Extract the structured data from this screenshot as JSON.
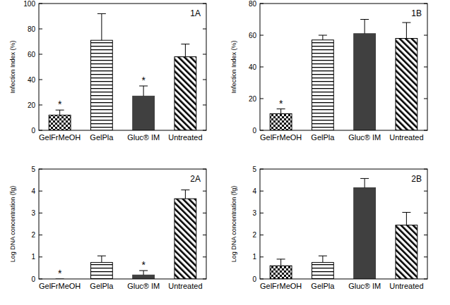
{
  "chart_data": [
    {
      "type": "bar",
      "title": "1A",
      "y_label": "Infection Index (%)",
      "categories": [
        "GelFrMeOH",
        "GelPla",
        "Gluc® IM",
        "Untreated"
      ],
      "values": [
        12,
        71,
        27,
        58
      ],
      "errors": [
        4,
        21,
        8,
        10
      ],
      "annotations": [
        "*",
        null,
        "*",
        null
      ],
      "colors": [
        "#000000",
        "#000000",
        "#404040",
        "#000000"
      ],
      "ylim": [
        0,
        100
      ],
      "yticks": [
        0,
        20,
        40,
        60,
        80,
        100
      ]
    },
    {
      "type": "bar",
      "title": "1B",
      "y_label": "Infection Index (%)",
      "categories": [
        "GelFrMeOH",
        "GelPla",
        "Gluc® IM",
        "Untreated"
      ],
      "values": [
        10.5,
        57,
        61,
        58
      ],
      "errors": [
        3,
        3,
        9,
        10
      ],
      "annotations": [
        "*",
        null,
        null,
        null
      ],
      "colors": [
        "#000000",
        "#000000",
        "#404040",
        "#000000"
      ],
      "ylim": [
        0,
        80
      ],
      "yticks": [
        0,
        20,
        40,
        60,
        80
      ]
    },
    {
      "type": "bar",
      "title": "2A",
      "y_label": "Log DNA concentration (fg)",
      "categories": [
        "GelFrMeOH",
        "GelPla",
        "Gluc® IM",
        "Untreated"
      ],
      "values": [
        0,
        0.75,
        0.18,
        3.65
      ],
      "errors": [
        0,
        0.3,
        0.2,
        0.4
      ],
      "annotations": [
        "*",
        null,
        "*",
        null
      ],
      "colors": [
        "#000000",
        "#000000",
        "#404040",
        "#000000"
      ],
      "ylim": [
        0,
        5
      ],
      "yticks": [
        0,
        1,
        2,
        3,
        4,
        5
      ]
    },
    {
      "type": "bar",
      "title": "2B",
      "y_label": "Log DNA concentration (fg)",
      "categories": [
        "GelFrMeOH",
        "GelPla",
        "Gluc® IM",
        "Untreated"
      ],
      "values": [
        0.6,
        0.75,
        4.15,
        2.45
      ],
      "errors": [
        0.3,
        0.3,
        0.42,
        0.58
      ],
      "annotations": [
        null,
        null,
        null,
        null
      ],
      "colors": [
        "#000000",
        "#000000",
        "#404040",
        "#000000"
      ],
      "ylim": [
        0,
        5
      ],
      "yticks": [
        0,
        1,
        2,
        3,
        4,
        5
      ]
    }
  ]
}
